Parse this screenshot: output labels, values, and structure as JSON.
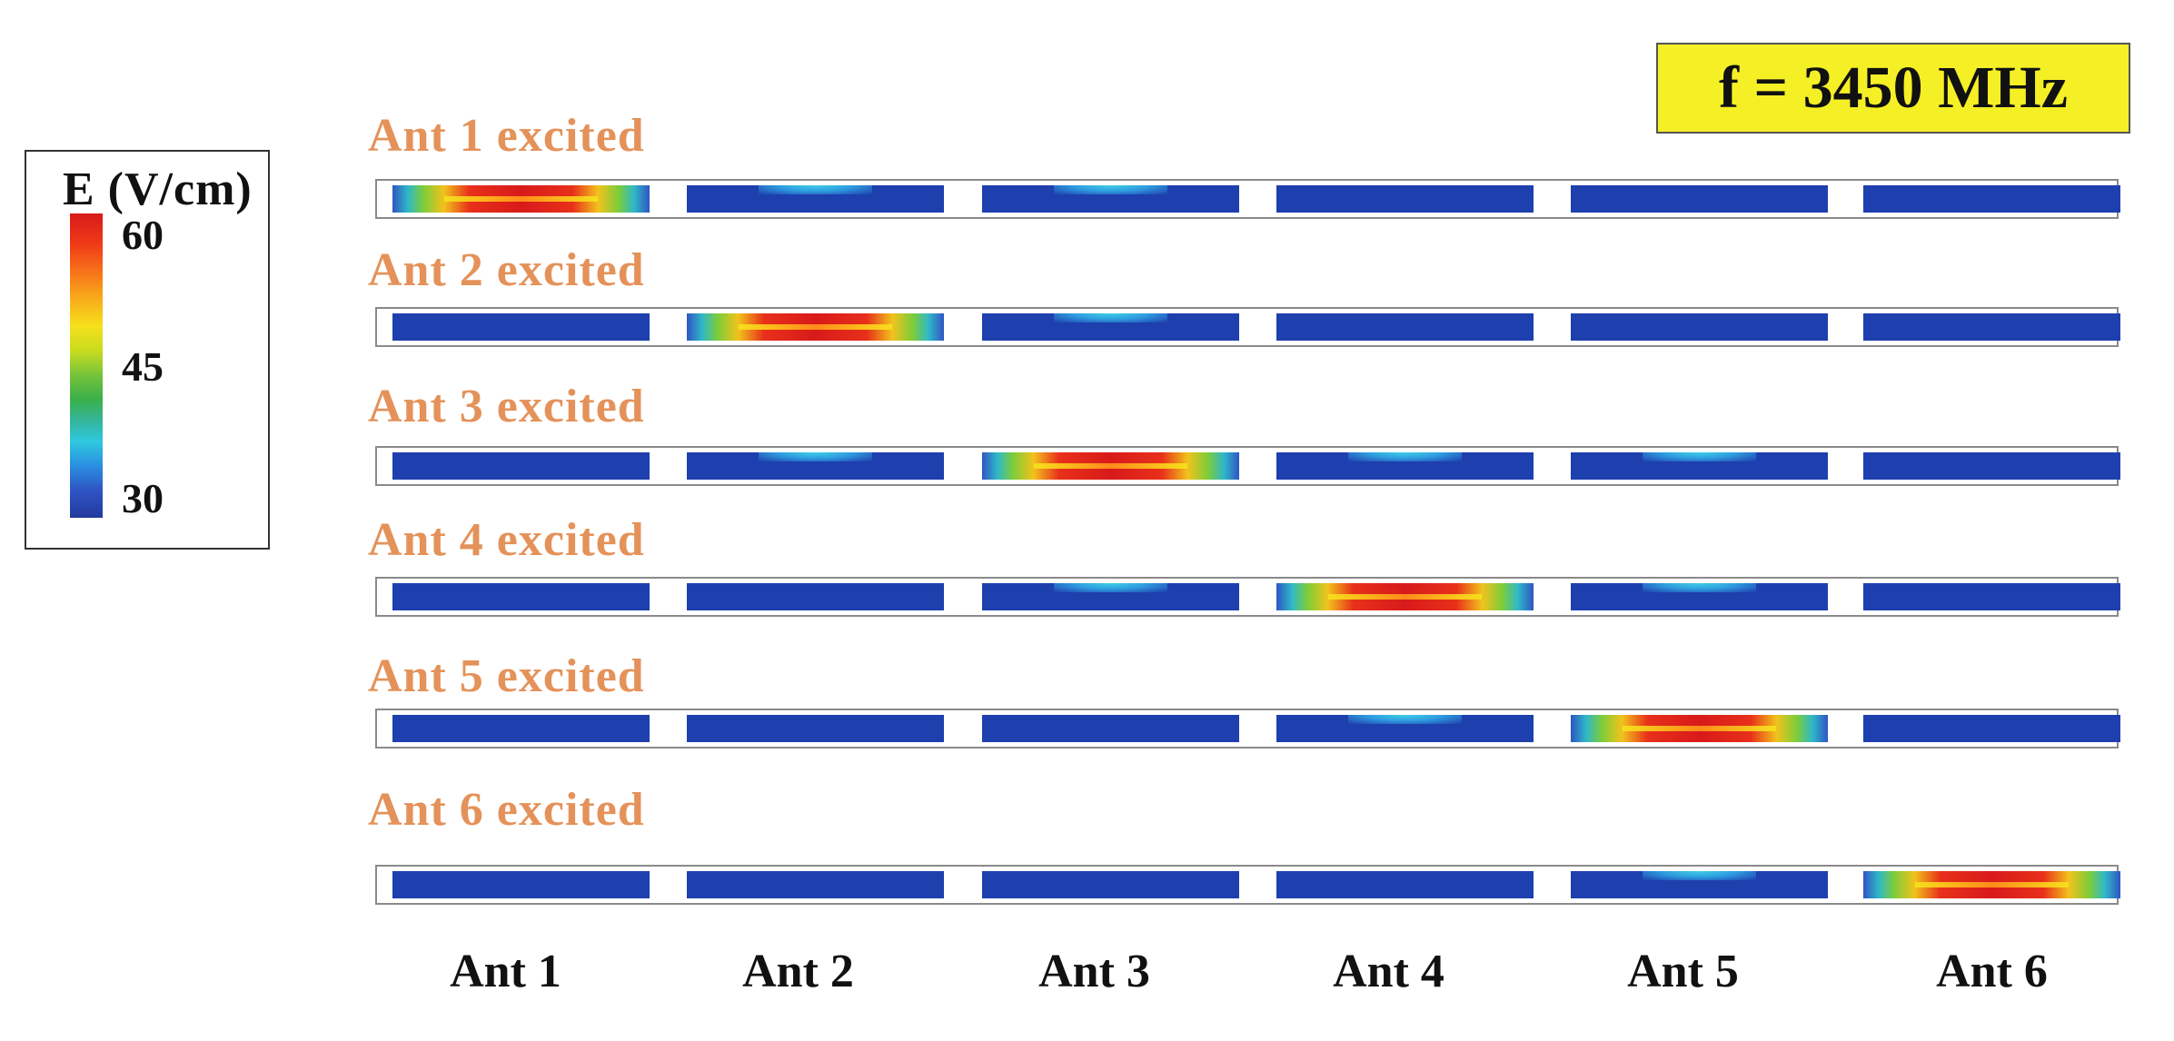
{
  "legend": {
    "title": "E (V/cm)",
    "max": "60",
    "mid": "45",
    "min": "30"
  },
  "frequency_label": "f = 3450 MHz",
  "rows": [
    {
      "label": "Ant 1 excited",
      "hot": 1,
      "warm": [
        2,
        3
      ]
    },
    {
      "label": "Ant 2 excited",
      "hot": 2,
      "warm": [
        3
      ]
    },
    {
      "label": "Ant 3 excited",
      "hot": 3,
      "warm": [
        2,
        4,
        5
      ]
    },
    {
      "label": "Ant 4 excited",
      "hot": 4,
      "warm": [
        3,
        5
      ]
    },
    {
      "label": "Ant 5 excited",
      "hot": 5,
      "warm": [
        4
      ]
    },
    {
      "label": "Ant 6 excited",
      "hot": 6,
      "warm": [
        5
      ]
    }
  ],
  "columns": [
    "Ant 1",
    "Ant 2",
    "Ant 3",
    "Ant 4",
    "Ant 5",
    "Ant 6"
  ]
}
